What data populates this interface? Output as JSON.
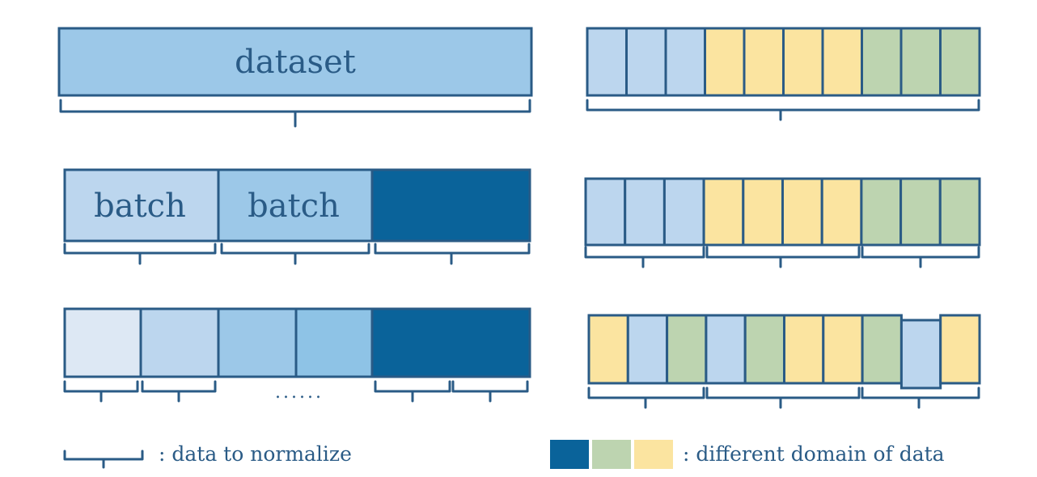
{
  "colors": {
    "stroke": "#2a5b86",
    "pale_blue": "#dde8f4",
    "light_blue": "#bcd6ee",
    "mid_blue": "#9cc8e8",
    "sky_blue": "#8ec3e6",
    "dark_blue": "#0a639a",
    "green": "#bdd4b0",
    "yellow": "#fbe4a0"
  },
  "left_panel": {
    "row1_label": "dataset",
    "row2_batch1_label": "batch",
    "row2_batch2_label": "batch",
    "row3_ellipsis": "......"
  },
  "right_panel": {
    "row1_domains": [
      "blue",
      "blue",
      "blue",
      "yellow",
      "yellow",
      "yellow",
      "yellow",
      "green",
      "green",
      "green"
    ],
    "row2_domains": [
      "blue",
      "blue",
      "blue",
      "yellow",
      "yellow",
      "yellow",
      "yellow",
      "green",
      "green",
      "green"
    ],
    "row3_domains": [
      "yellow",
      "blue",
      "green",
      "blue",
      "green",
      "yellow",
      "yellow",
      "green",
      "blue",
      "yellow"
    ]
  },
  "legend": {
    "normalize_text": ": data to normalize",
    "domain_text": ": different domain of data",
    "domain_swatches": [
      "dark_blue",
      "green",
      "yellow"
    ]
  }
}
